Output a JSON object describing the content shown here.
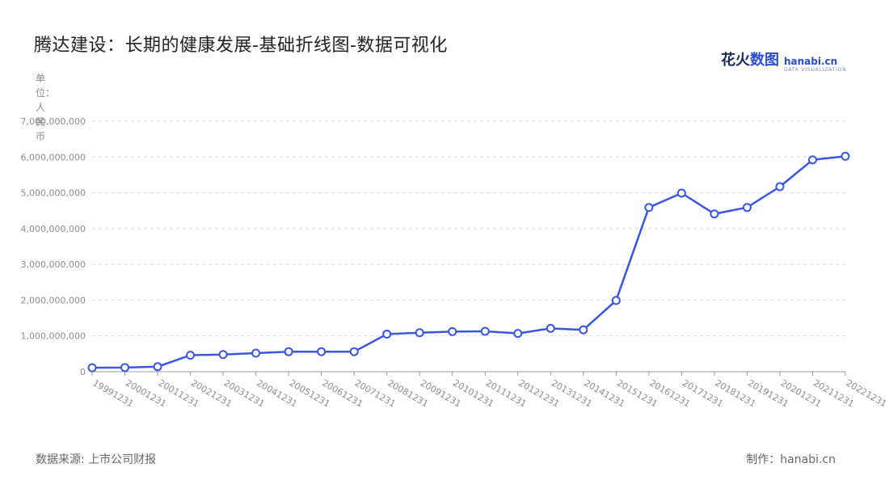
{
  "title": "腾达建设：长期的健康发展-基础折线图-数据可视化",
  "logo": {
    "zh_a": "花火",
    "zh_b": "数图",
    "en": "hanabi.cn",
    "en_sub": "DATA VISUALIZATION"
  },
  "unit_label": "单位：人民币",
  "footer": {
    "source": "数据来源: 上市公司财报",
    "credit": "制作：hanabi.cn"
  },
  "colors": {
    "line": "#3a55e0",
    "grid": "#d9d9d9",
    "axis": "#999999",
    "text": "#8c8c8c"
  },
  "chart_data": {
    "type": "line",
    "title": "腾达建设：长期的健康发展-基础折线图-数据可视化",
    "xlabel": "",
    "ylabel": "单位：人民币",
    "ylim": [
      0,
      7000000000
    ],
    "yticks": [
      0,
      1000000000,
      2000000000,
      3000000000,
      4000000000,
      5000000000,
      6000000000,
      7000000000
    ],
    "ytick_labels": [
      "0",
      "1,000,000,000",
      "2,000,000,000",
      "3,000,000,000",
      "4,000,000,000",
      "5,000,000,000",
      "6,000,000,000",
      "7,000,000,000"
    ],
    "grid": true,
    "categories": [
      "19991231",
      "20001231",
      "20011231",
      "20021231",
      "20031231",
      "20041231",
      "20051231",
      "20061231",
      "20071231",
      "20081231",
      "20091231",
      "20101231",
      "20111231",
      "20121231",
      "20131231",
      "20141231",
      "20151231",
      "20161231",
      "20171231",
      "20181231",
      "20191231",
      "20201231",
      "20211231",
      "20221231"
    ],
    "series": [
      {
        "values": [
          110000000,
          115000000,
          140000000,
          460000000,
          480000000,
          520000000,
          560000000,
          560000000,
          560000000,
          1050000000,
          1090000000,
          1120000000,
          1130000000,
          1070000000,
          1210000000,
          1170000000,
          1990000000,
          4590000000,
          4990000000,
          4410000000,
          4590000000,
          5170000000,
          5920000000,
          6020000000
        ]
      }
    ]
  }
}
